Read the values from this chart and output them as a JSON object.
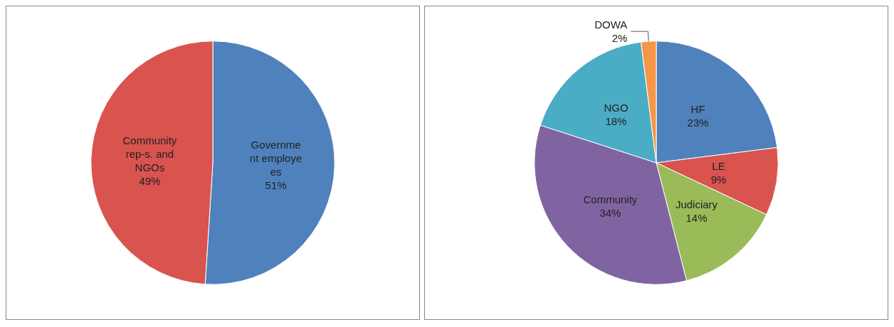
{
  "chart_data": [
    {
      "type": "pie",
      "categories": [
        "Government employees",
        "Community rep-s. and NGOs"
      ],
      "values": [
        51,
        49
      ],
      "value_labels": [
        "51%",
        "49%"
      ],
      "colors": [
        "#4f81bd",
        "#d9534f"
      ],
      "legend": false
    },
    {
      "type": "pie",
      "categories": [
        "HF",
        "LE",
        "Judiciary",
        "Community",
        "NGO",
        "DOWA"
      ],
      "values": [
        23,
        9,
        14,
        34,
        18,
        2
      ],
      "value_labels": [
        "23%",
        "9%",
        "14%",
        "34%",
        "18%",
        "2%"
      ],
      "colors": [
        "#4f81bd",
        "#d9534f",
        "#9bbb59",
        "#8064a2",
        "#4bacc6",
        "#f79646"
      ],
      "legend": false
    }
  ]
}
